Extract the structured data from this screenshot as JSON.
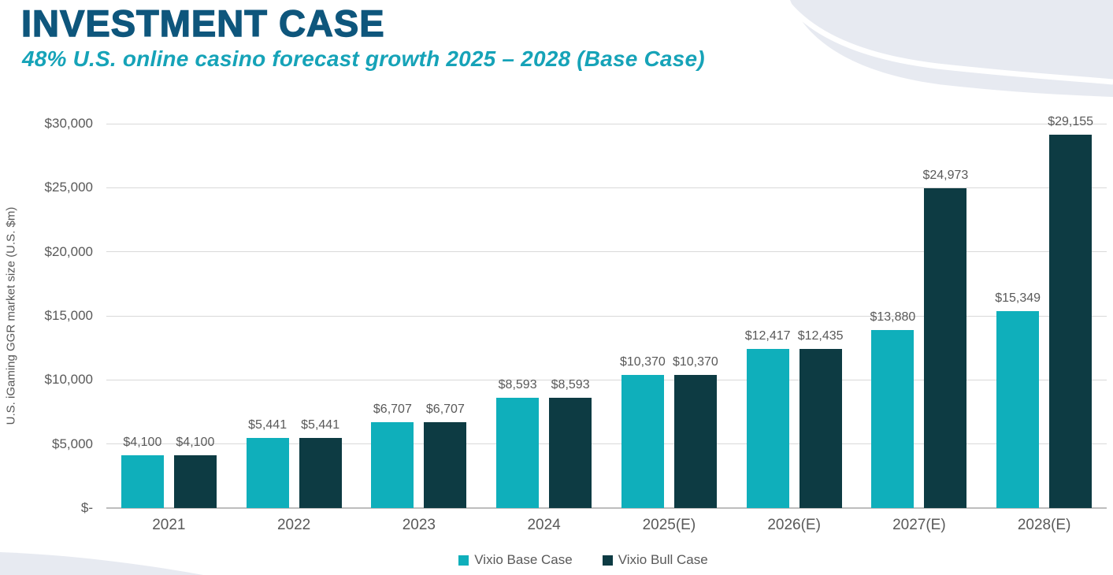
{
  "header": {
    "title": "INVESTMENT CASE",
    "subtitle": "48% U.S. online casino forecast growth 2025 – 2028 (Base Case)"
  },
  "colors": {
    "title_text": "#0E567C",
    "subtitle_text": "#16A3B8",
    "base_case_bar": "#0FAFBB",
    "bull_case_bar": "#0D3B43",
    "axis_text": "#595959",
    "gridline": "#D9D9D9",
    "baseline": "#BDBDBD",
    "decoration": "#E7EAF1"
  },
  "chart_data": {
    "type": "bar",
    "title": "",
    "categories": [
      "2021",
      "2022",
      "2023",
      "2024",
      "2025(E)",
      "2026(E)",
      "2027(E)",
      "2028(E)"
    ],
    "series": [
      {
        "name": "Vixio Base Case",
        "color": "#0FAFBB",
        "values": [
          4100,
          5441,
          6707,
          8593,
          10370,
          12417,
          13880,
          15349
        ],
        "labels": [
          "$4,100",
          "$5,441",
          "$6,707",
          "$8,593",
          "$10,370",
          "$12,417",
          "$13,880",
          "$15,349"
        ]
      },
      {
        "name": "Vixio Bull Case",
        "color": "#0D3B43",
        "values": [
          4100,
          5441,
          6707,
          8593,
          10370,
          12435,
          24973,
          29155
        ],
        "labels": [
          "$4,100",
          "$5,441",
          "$6,707",
          "$8,593",
          "$10,370",
          "$12,435",
          "$24,973",
          "$29,155"
        ]
      }
    ],
    "xlabel": "",
    "ylabel": "U.S. iGaming GGR market size (U.S. $m)",
    "ylim": [
      0,
      30000
    ],
    "ytick_values": [
      0,
      5000,
      10000,
      15000,
      20000,
      25000,
      30000
    ],
    "ytick_labels": [
      "$-",
      "$5,000",
      "$10,000",
      "$15,000",
      "$20,000",
      "$25,000",
      "$30,000"
    ],
    "grid": true,
    "legend_position": "bottom"
  }
}
